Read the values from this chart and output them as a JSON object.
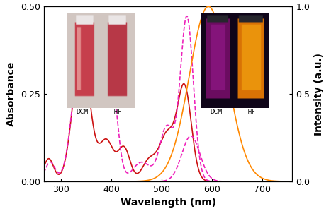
{
  "xlim": [
    265,
    760
  ],
  "ylim_abs": [
    0.0,
    0.5
  ],
  "ylim_fl": [
    0.0,
    1.0
  ],
  "yticks_abs": [
    0.0,
    0.25,
    0.5
  ],
  "yticks_fl": [
    0.0,
    0.5,
    1.0
  ],
  "xlabel": "Wavelength (nm)",
  "ylabel_left": "Absorbance",
  "ylabel_right": "Intensity (a.u.)",
  "xticks": [
    300,
    400,
    500,
    600,
    700
  ],
  "color_abs_dcm": "#cc1111",
  "color_abs_thf": "#ee22bb",
  "color_fl_dcm": "#ff8800",
  "color_fl_thf": "#ee22bb",
  "linewidth": 1.2
}
